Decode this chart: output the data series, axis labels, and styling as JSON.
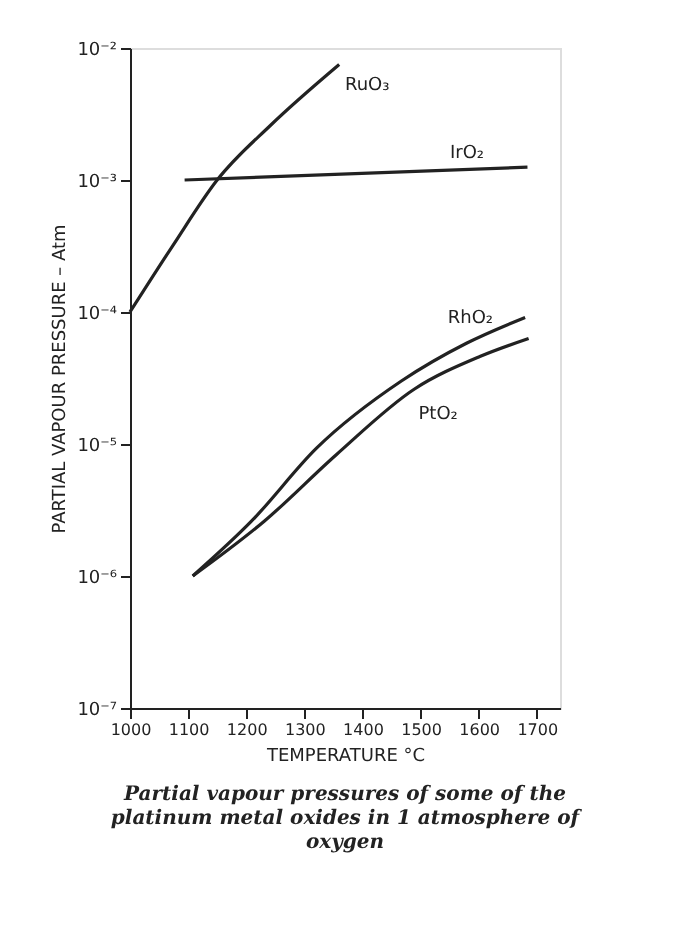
{
  "chart_data": {
    "type": "line",
    "xlabel": "TEMPERATURE °C",
    "ylabel": "PARTIAL VAPOUR PRESSURE – Atm",
    "xlim": [
      1000,
      1740
    ],
    "xticks": [
      1000,
      1100,
      1200,
      1300,
      1400,
      1500,
      1600,
      1700
    ],
    "ylim": [
      1e-07,
      0.01
    ],
    "log": true,
    "yticks": [
      {
        "value": 1e-07,
        "label": "10⁻⁷"
      },
      {
        "value": 1e-06,
        "label": "10⁻⁶"
      },
      {
        "value": 1e-05,
        "label": "10⁻⁵"
      },
      {
        "value": 0.0001,
        "label": "10⁻⁴"
      },
      {
        "value": 0.001,
        "label": "10⁻³"
      },
      {
        "value": 0.01,
        "label": "10⁻²"
      }
    ],
    "grid": false,
    "marker": "none",
    "line_style": "solid",
    "series": [
      {
        "color": "#222222",
        "x": [
          1000,
          1074,
          1150,
          1242,
          1360
        ],
        "values": [
          0.0001,
          0.00032,
          0.001,
          0.0026,
          0.0075
        ]
      },
      {
        "color": "#222222",
        "x": [
          1094,
          1684
        ],
        "values": [
          0.001,
          0.00125
        ]
      },
      {
        "color": "#222222",
        "x": [
          1108,
          1209,
          1321,
          1467,
          1579,
          1680
        ],
        "values": [
          1e-06,
          2.6e-06,
          9.3e-06,
          3e-05,
          5.8e-05,
          9.1e-05
        ]
      },
      {
        "color": "#222222",
        "x": [
          1108,
          1231,
          1355,
          1489,
          1602,
          1686
        ],
        "values": [
          1e-06,
          2.6e-06,
          8.3e-06,
          2.6e-05,
          4.6e-05,
          6.3e-05
        ]
      }
    ],
    "annotations": [
      {
        "text": "RuO₃",
        "x": 1360,
        "y": 0.0075
      },
      {
        "text": "IrO₂",
        "x": 1580,
        "y": 0.0012
      },
      {
        "text": "RhO₂",
        "x": 1579,
        "y": 5.8e-05
      },
      {
        "text": "PtO₂",
        "x": 1489,
        "y": 2.6e-05
      },
      "Partial vapour pressures of some of the platinum metal oxides in 1 atmosphere of oxygen"
    ]
  }
}
